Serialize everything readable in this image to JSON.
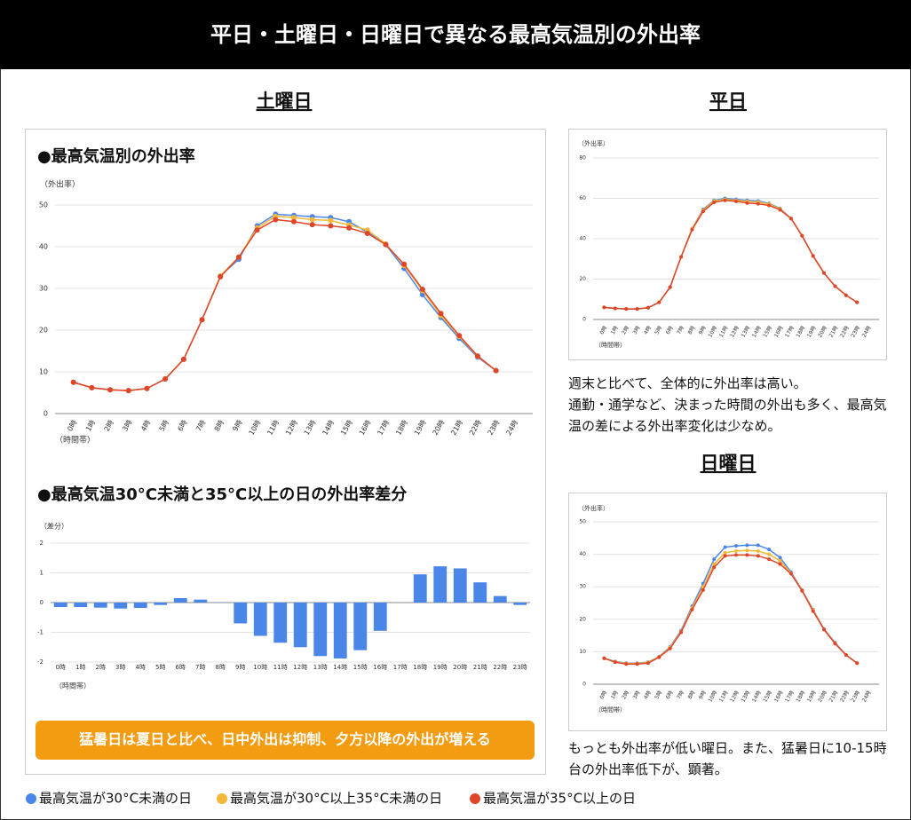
{
  "title": "平日・土曜日・日曜日で異なる最高気温別の外出率",
  "headings": [
    "土曜日",
    "平日",
    "日曜日"
  ],
  "callout": "猛暑日は夏日と比べ、日中外出は抑制、夕方以降の外出が増える",
  "notes": {
    "weekday": [
      "週末と比べて、全体的に外出率は高い。",
      "通勤・通学など、決まった時間の外出も多く、最高気温の差による外出率変化は少なめ。"
    ],
    "sunday": [
      "もっとも外出率が低い曜日。また、猛暑日に10-15時台の外出率低下が、顕著。"
    ]
  },
  "chart_data": [
    {
      "type": "line",
      "title": "●最高気温別の外出率",
      "ylabel": "（外出率）",
      "xlabel": "（時間帯）",
      "grid": true,
      "x": [
        0,
        1,
        2,
        3,
        4,
        5,
        6,
        7,
        8,
        9,
        10,
        11,
        12,
        13,
        14,
        15,
        16,
        17,
        18,
        19,
        20,
        21,
        22,
        23
      ],
      "xlim": [
        -1,
        25
      ],
      "xticks": [
        {
          "value": 0,
          "label": "0時"
        },
        {
          "value": 1,
          "label": "1時"
        },
        {
          "value": 2,
          "label": "2時"
        },
        {
          "value": 3,
          "label": "3時"
        },
        {
          "value": 4,
          "label": "4時"
        },
        {
          "value": 5,
          "label": "5時"
        },
        {
          "value": 6,
          "label": "6時"
        },
        {
          "value": 7,
          "label": "7時"
        },
        {
          "value": 8,
          "label": "8時"
        },
        {
          "value": 9,
          "label": "9時"
        },
        {
          "value": 10,
          "label": "10時"
        },
        {
          "value": 11,
          "label": "11時"
        },
        {
          "value": 12,
          "label": "12時"
        },
        {
          "value": 13,
          "label": "13時"
        },
        {
          "value": 14,
          "label": "14時"
        },
        {
          "value": 15,
          "label": "15時"
        },
        {
          "value": 16,
          "label": "16時"
        },
        {
          "value": 17,
          "label": "17時"
        },
        {
          "value": 18,
          "label": "18時"
        },
        {
          "value": 19,
          "label": "19時"
        },
        {
          "value": 20,
          "label": "20時"
        },
        {
          "value": 21,
          "label": "21時"
        },
        {
          "value": 22,
          "label": "22時"
        },
        {
          "value": 23,
          "label": "23時"
        },
        {
          "value": 24,
          "label": "24時"
        }
      ],
      "ylim": [
        0,
        50
      ],
      "yticks": [
        0,
        10,
        20,
        30,
        40,
        50
      ],
      "series": [
        {
          "name": "最高気温が30°C未満の日",
          "color": "#4a86e8",
          "values": [
            7.5,
            6.2,
            5.7,
            5.5,
            6.0,
            8.3,
            13,
            22.5,
            33,
            37,
            45,
            47.8,
            47.5,
            47.2,
            47,
            46,
            43.5,
            40.5,
            34.8,
            28.5,
            23,
            18,
            13.5,
            10.3
          ]
        },
        {
          "name": "最高気温が30°C以上35°C未満の日",
          "color": "#f1b937",
          "values": [
            7.5,
            6.2,
            5.7,
            5.5,
            6.0,
            8.3,
            13,
            22.5,
            33,
            37.5,
            44.5,
            47.3,
            47,
            46.5,
            46.3,
            45.2,
            44,
            40.7,
            35.5,
            29.5,
            23.5,
            18.5,
            13.7,
            10.3
          ]
        },
        {
          "name": "最高気温が35°C以上の日",
          "color": "#e0452a",
          "values": [
            7.5,
            6.2,
            5.7,
            5.5,
            6.0,
            8.3,
            13,
            22.5,
            32.8,
            37.5,
            44,
            46.5,
            46,
            45.3,
            45,
            44.5,
            43.2,
            40.5,
            35.8,
            29.8,
            24,
            18.7,
            13.8,
            10.3
          ]
        }
      ]
    },
    {
      "type": "bar",
      "title": "●最高気温30°C未満と35°C以上の日の外出率差分",
      "ylabel": "（差分）",
      "xlabel": "（時間帯）",
      "grid": true,
      "color": "#4a86e8",
      "categories": [
        "0時",
        "1時",
        "2時",
        "3時",
        "4時",
        "5時",
        "6時",
        "7時",
        "8時",
        "9時",
        "10時",
        "11時",
        "12時",
        "13時",
        "14時",
        "15時",
        "16時",
        "17時",
        "18時",
        "19時",
        "20時",
        "21時",
        "22時",
        "23時"
      ],
      "values": [
        -0.15,
        -0.15,
        -0.17,
        -0.2,
        -0.18,
        -0.08,
        0.15,
        0.1,
        0.01,
        -0.7,
        -1.12,
        -1.35,
        -1.5,
        -1.8,
        -1.88,
        -1.6,
        -0.95,
        0.0,
        0.95,
        1.22,
        1.15,
        0.68,
        0.22,
        -0.08
      ],
      "ylim": [
        -2,
        2
      ],
      "yticks": [
        -2,
        -1,
        0,
        1,
        2
      ]
    },
    {
      "type": "line",
      "ylabel": "（外出率）",
      "xlabel": "（時間帯）",
      "grid": true,
      "x": [
        0,
        1,
        2,
        3,
        4,
        5,
        6,
        7,
        8,
        9,
        10,
        11,
        12,
        13,
        14,
        15,
        16,
        17,
        18,
        19,
        20,
        21,
        22,
        23
      ],
      "xlim": [
        -1,
        25
      ],
      "xticks": [
        {
          "value": 0,
          "label": "0時"
        },
        {
          "value": 1,
          "label": "1時"
        },
        {
          "value": 2,
          "label": "2時"
        },
        {
          "value": 3,
          "label": "3時"
        },
        {
          "value": 4,
          "label": "4時"
        },
        {
          "value": 5,
          "label": "5時"
        },
        {
          "value": 6,
          "label": "6時"
        },
        {
          "value": 7,
          "label": "7時"
        },
        {
          "value": 8,
          "label": "8時"
        },
        {
          "value": 9,
          "label": "9時"
        },
        {
          "value": 10,
          "label": "10時"
        },
        {
          "value": 11,
          "label": "11時"
        },
        {
          "value": 12,
          "label": "12時"
        },
        {
          "value": 13,
          "label": "13時"
        },
        {
          "value": 14,
          "label": "14時"
        },
        {
          "value": 15,
          "label": "15時"
        },
        {
          "value": 16,
          "label": "16時"
        },
        {
          "value": 17,
          "label": "17時"
        },
        {
          "value": 18,
          "label": "18時"
        },
        {
          "value": 19,
          "label": "19時"
        },
        {
          "value": 20,
          "label": "20時"
        },
        {
          "value": 21,
          "label": "21時"
        },
        {
          "value": 22,
          "label": "22時"
        },
        {
          "value": 23,
          "label": "23時"
        },
        {
          "value": 24,
          "label": "24時"
        }
      ],
      "ylim": [
        0,
        80
      ],
      "yticks": [
        0,
        20,
        40,
        60,
        80
      ],
      "series": [
        {
          "color": "#4a86e8",
          "values": [
            6,
            5.5,
            5.2,
            5.2,
            5.8,
            8.5,
            16,
            31,
            45,
            54.5,
            59,
            60,
            59.5,
            59,
            58.7,
            57.5,
            55,
            50,
            41.5,
            31.5,
            23,
            16.5,
            12,
            8.5
          ]
        },
        {
          "color": "#f1b937",
          "values": [
            6,
            5.5,
            5.2,
            5.2,
            5.8,
            8.5,
            16,
            31,
            45,
            54,
            58.7,
            59.5,
            59,
            58.5,
            58.2,
            57.2,
            54.7,
            50,
            41.5,
            31.5,
            23,
            16.5,
            12,
            8.5
          ]
        },
        {
          "color": "#e0452a",
          "values": [
            6,
            5.5,
            5.2,
            5.2,
            5.8,
            8.5,
            16,
            31,
            44.5,
            53.5,
            58,
            59,
            58.5,
            57.7,
            57.3,
            56.5,
            54.3,
            50,
            41.5,
            31.5,
            23,
            16.5,
            12,
            8.5
          ]
        }
      ]
    },
    {
      "type": "line",
      "ylabel": "（外出率）",
      "xlabel": "（時間帯）",
      "grid": true,
      "x": [
        0,
        1,
        2,
        3,
        4,
        5,
        6,
        7,
        8,
        9,
        10,
        11,
        12,
        13,
        14,
        15,
        16,
        17,
        18,
        19,
        20,
        21,
        22,
        23
      ],
      "xlim": [
        -1,
        25
      ],
      "xticks": [
        {
          "value": 0,
          "label": "0時"
        },
        {
          "value": 1,
          "label": "1時"
        },
        {
          "value": 2,
          "label": "2時"
        },
        {
          "value": 3,
          "label": "3時"
        },
        {
          "value": 4,
          "label": "4時"
        },
        {
          "value": 5,
          "label": "5時"
        },
        {
          "value": 6,
          "label": "6時"
        },
        {
          "value": 7,
          "label": "7時"
        },
        {
          "value": 8,
          "label": "8時"
        },
        {
          "value": 9,
          "label": "9時"
        },
        {
          "value": 10,
          "label": "10時"
        },
        {
          "value": 11,
          "label": "11時"
        },
        {
          "value": 12,
          "label": "12時"
        },
        {
          "value": 13,
          "label": "13時"
        },
        {
          "value": 14,
          "label": "14時"
        },
        {
          "value": 15,
          "label": "15時"
        },
        {
          "value": 16,
          "label": "16時"
        },
        {
          "value": 17,
          "label": "17時"
        },
        {
          "value": 18,
          "label": "18時"
        },
        {
          "value": 19,
          "label": "19時"
        },
        {
          "value": 20,
          "label": "20時"
        },
        {
          "value": 21,
          "label": "21時"
        },
        {
          "value": 22,
          "label": "22時"
        },
        {
          "value": 23,
          "label": "23時"
        },
        {
          "value": 24,
          "label": "24時"
        }
      ],
      "ylim": [
        0,
        50
      ],
      "yticks": [
        0,
        10,
        20,
        30,
        40,
        50
      ],
      "series": [
        {
          "color": "#4a86e8",
          "values": [
            8,
            7,
            6.5,
            6.5,
            6.8,
            8.5,
            11.5,
            16.5,
            24,
            31,
            38.5,
            42.2,
            42.6,
            42.8,
            42.8,
            41.5,
            39,
            34.5,
            29,
            23,
            17,
            12.8,
            9,
            6.5
          ]
        },
        {
          "color": "#f1b937",
          "values": [
            8,
            6.9,
            6.4,
            6.4,
            6.7,
            8.4,
            11.3,
            16.2,
            23.5,
            30,
            37,
            40.5,
            41,
            41.2,
            41,
            40,
            38,
            34.2,
            28.9,
            22.8,
            16.9,
            12.6,
            9,
            6.5
          ]
        },
        {
          "color": "#e0452a",
          "values": [
            8,
            6.8,
            6.2,
            6.2,
            6.5,
            8.3,
            11,
            16,
            23,
            29,
            36,
            39.5,
            39.8,
            39.8,
            39.5,
            38.5,
            37,
            34,
            28.8,
            22.5,
            16.8,
            12.5,
            9,
            6.5
          ]
        }
      ]
    }
  ]
}
